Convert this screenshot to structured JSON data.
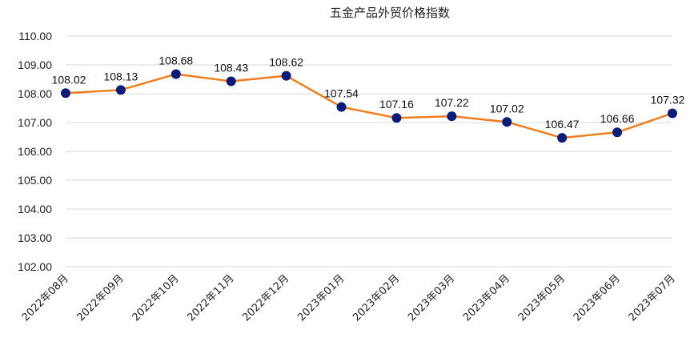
{
  "chart_data": {
    "type": "line",
    "title": "五金产品外贸价格指数",
    "categories": [
      "2022年08月",
      "2022年09月",
      "2022年10月",
      "2022年11月",
      "2022年12月",
      "2023年01月",
      "2023年02月",
      "2023年03月",
      "2023年04月",
      "2023年05月",
      "2023年06月",
      "2023年07月"
    ],
    "series": [
      {
        "values": [
          108.02,
          108.13,
          108.68,
          108.43,
          108.62,
          107.54,
          107.16,
          107.22,
          107.02,
          106.47,
          106.66,
          107.32
        ]
      }
    ],
    "value_labels": [
      "108.02",
      "108.13",
      "108.68",
      "108.43",
      "108.62",
      "107.54",
      "107.16",
      "107.22",
      "107.02",
      "106.47",
      "106.66",
      "107.32"
    ],
    "yticks": [
      "102.00",
      "103.00",
      "104.00",
      "105.00",
      "106.00",
      "107.00",
      "108.00",
      "109.00",
      "110.00"
    ],
    "ylim": [
      102,
      110
    ],
    "grid": true,
    "legend": "none",
    "colors": {
      "line": "#f07d1e",
      "marker": "#0a1c78",
      "grid": "#d9d9d9"
    }
  }
}
